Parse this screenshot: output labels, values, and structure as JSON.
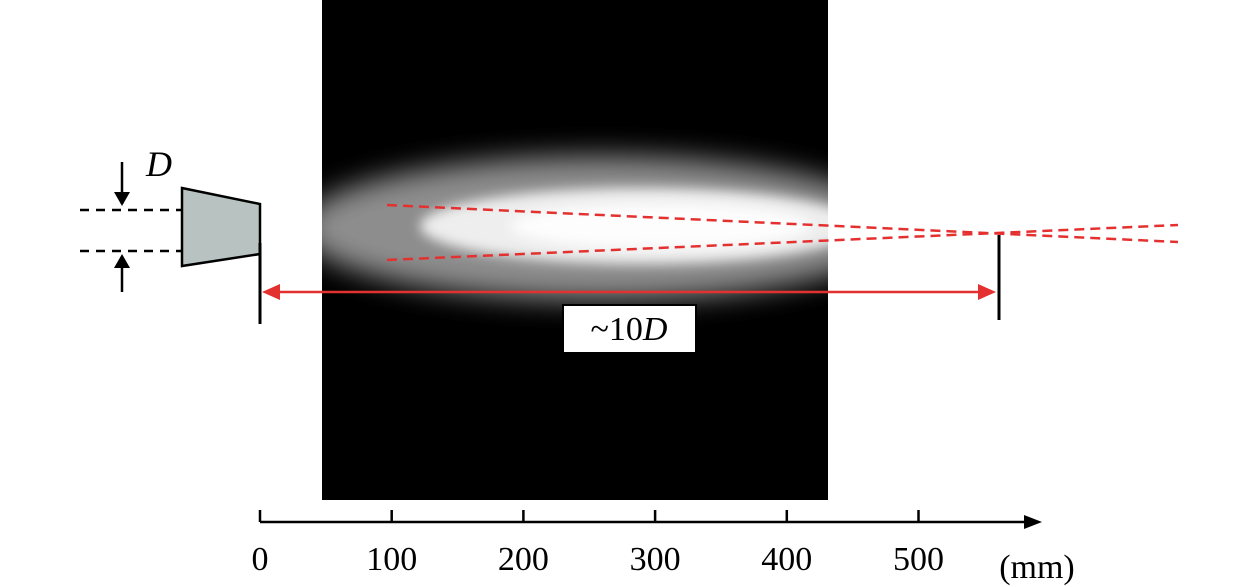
{
  "diagram": {
    "diameter_symbol": "D",
    "distance_label": {
      "prefix": "~10",
      "symbol": "D"
    },
    "axis": {
      "unit": "(mm)",
      "ticks": [
        0,
        100,
        200,
        300,
        400,
        500
      ]
    },
    "colors": {
      "guide_lines": "#e53030",
      "nozzle_fill": "#b8c2c0",
      "background_image": "#000000",
      "ink": "#000000"
    }
  }
}
